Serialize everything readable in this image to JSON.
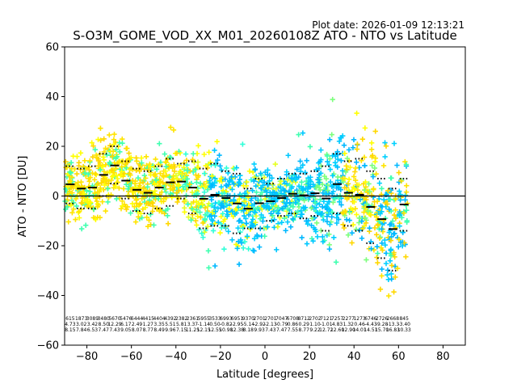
{
  "plot_date": "Plot date: 2026-01-09 12:13:21",
  "chart_data": {
    "type": "scatter",
    "title": "S-O3M_GOME_VOD_XX_M01_20260108Z ATO - NTO vs Latitude",
    "xlabel": "Latitude [degrees]",
    "ylabel": "ATO - NTO [DU]",
    "xlim": [
      -90,
      90
    ],
    "ylim": [
      -60,
      60
    ],
    "x_ticks": [
      -80,
      -60,
      -40,
      -20,
      0,
      20,
      40,
      60,
      80
    ],
    "y_ticks": [
      -60,
      -40,
      -20,
      0,
      20,
      40,
      60
    ],
    "zero_line": 0,
    "bin_width": 5,
    "bins": [
      {
        "lat": -87.5,
        "mean": 4.7,
        "p_hi": 12,
        "p_lo": -3,
        "stats": [
          "615",
          "4.73",
          "8.15"
        ]
      },
      {
        "lat": -82.5,
        "mean": 3.0,
        "p_hi": 11,
        "p_lo": -5,
        "stats": [
          "1873",
          "3.02",
          "7.84"
        ]
      },
      {
        "lat": -77.5,
        "mean": 3.4,
        "p_hi": 12,
        "p_lo": -5,
        "stats": [
          "3089",
          "3.42",
          "6.53"
        ]
      },
      {
        "lat": -72.5,
        "mean": 8.5,
        "p_hi": 17,
        "p_lo": 0,
        "stats": [
          "3480",
          "8.50",
          "7.47"
        ]
      },
      {
        "lat": -67.5,
        "mean": 12.3,
        "p_hi": 20,
        "p_lo": 5,
        "stats": [
          "5670",
          "12.29",
          "7.43"
        ]
      },
      {
        "lat": -62.5,
        "mean": 6.2,
        "p_hi": 14,
        "p_lo": -1,
        "stats": [
          "5476",
          "6.17",
          "9.05"
        ]
      },
      {
        "lat": -57.5,
        "mean": 2.5,
        "p_hi": 11,
        "p_lo": -6,
        "stats": [
          "6444",
          "2.49",
          "8.07"
        ]
      },
      {
        "lat": -52.5,
        "mean": 1.3,
        "p_hi": 10,
        "p_lo": -7,
        "stats": [
          "4415",
          "1.27",
          "8.77"
        ]
      },
      {
        "lat": -47.5,
        "mean": 3.4,
        "p_hi": 12,
        "p_lo": -5,
        "stats": [
          "4404",
          "3.35",
          "8.49"
        ]
      },
      {
        "lat": -42.5,
        "mean": 5.5,
        "p_hi": 15,
        "p_lo": -4,
        "stats": [
          "4392",
          "5.51",
          "9.96"
        ]
      },
      {
        "lat": -37.5,
        "mean": 5.8,
        "p_hi": 13,
        "p_lo": -1,
        "stats": [
          "2382",
          "5.81",
          "7.15"
        ]
      },
      {
        "lat": -32.5,
        "mean": 3.4,
        "p_hi": 14,
        "p_lo": -7,
        "stats": [
          "2361",
          "3.37",
          "11.25"
        ]
      },
      {
        "lat": -27.5,
        "mean": -1.1,
        "p_hi": 11,
        "p_lo": -13,
        "stats": [
          "5955",
          "-1.14",
          "12.15"
        ]
      },
      {
        "lat": -22.5,
        "mean": 0.5,
        "p_hi": 13,
        "p_lo": -12,
        "stats": [
          "3533",
          "0.50",
          "12.55"
        ]
      },
      {
        "lat": -17.5,
        "mean": -0.8,
        "p_hi": 10,
        "p_lo": -12,
        "stats": [
          "6993",
          "-0.82",
          "10.98"
        ]
      },
      {
        "lat": -12.5,
        "mean": -3.0,
        "p_hi": 9,
        "p_lo": -15,
        "stats": [
          "6951",
          "-2.95",
          "12.38"
        ]
      },
      {
        "lat": -7.5,
        "mean": -5.1,
        "p_hi": 3,
        "p_lo": -13,
        "stats": [
          "9370",
          "-5.14",
          "8.18"
        ]
      },
      {
        "lat": -2.5,
        "mean": -2.9,
        "p_hi": 7,
        "p_lo": -13,
        "stats": [
          "2701",
          "-2.92",
          "9.93"
        ]
      },
      {
        "lat": 2.5,
        "mean": -2.1,
        "p_hi": 5,
        "p_lo": -10,
        "stats": [
          "2701",
          "-2.13",
          "7.43"
        ]
      },
      {
        "lat": 7.5,
        "mean": -0.8,
        "p_hi": 7,
        "p_lo": -8,
        "stats": [
          "7047",
          "-0.79",
          "7.47"
        ]
      },
      {
        "lat": 12.5,
        "mean": 0.9,
        "p_hi": 9,
        "p_lo": -7,
        "stats": [
          "6708",
          "0.86",
          "7.55"
        ]
      },
      {
        "lat": 17.5,
        "mean": 0.3,
        "p_hi": 9,
        "p_lo": -9,
        "stats": [
          "8712",
          "0.29",
          "8.77"
        ]
      },
      {
        "lat": 22.5,
        "mean": 1.1,
        "p_hi": 10,
        "p_lo": -8,
        "stats": [
          "2702",
          "1.10",
          "9.22"
        ]
      },
      {
        "lat": 27.5,
        "mean": -1.0,
        "p_hi": 12,
        "p_lo": -14,
        "stats": [
          "7121",
          "-1.01",
          "12.72"
        ]
      },
      {
        "lat": 32.5,
        "mean": 4.8,
        "p_hi": 17,
        "p_lo": -7,
        "stats": [
          "7257",
          "4.83",
          "12.60"
        ]
      },
      {
        "lat": 37.5,
        "mean": 1.3,
        "p_hi": 14,
        "p_lo": -12,
        "stats": [
          "2277",
          "1.32",
          "12.90"
        ]
      },
      {
        "lat": 42.5,
        "mean": 0.5,
        "p_hi": 15,
        "p_lo": -14,
        "stats": [
          "1273",
          "0.46",
          "14.01"
        ]
      },
      {
        "lat": 47.5,
        "mean": -4.4,
        "p_hi": 10,
        "p_lo": -19,
        "stats": [
          "6746",
          "-4.43",
          "14.51"
        ]
      },
      {
        "lat": 52.5,
        "mean": -9.3,
        "p_hi": 7,
        "p_lo": -25,
        "stats": [
          "2726",
          "-9.28",
          "15.70"
        ]
      },
      {
        "lat": 57.5,
        "mean": -13.3,
        "p_hi": 3,
        "p_lo": -30,
        "stats": [
          "2668",
          "-13.3",
          "16.83"
        ]
      },
      {
        "lat": 62.5,
        "mean": -3.4,
        "p_hi": 7,
        "p_lo": -14,
        "stats": [
          "845",
          "-3.40",
          "10.33"
        ]
      }
    ]
  }
}
